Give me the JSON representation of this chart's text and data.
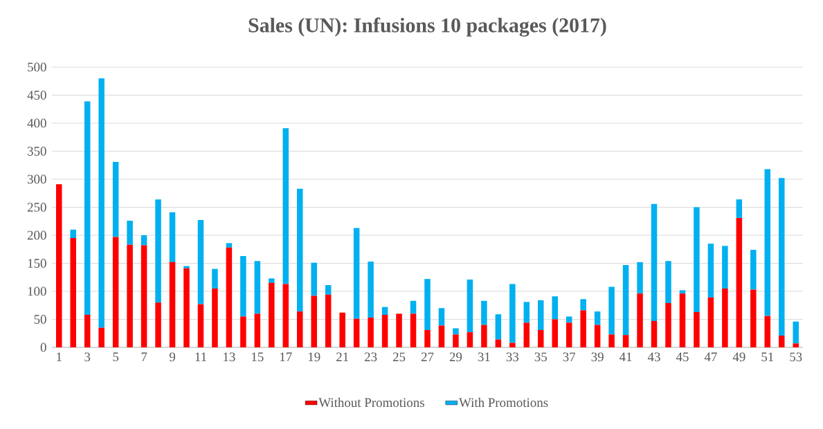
{
  "chart_data": {
    "type": "bar",
    "title": "Sales (UN): Infusions 10 packages (2017)",
    "stacked": true,
    "grid": "y",
    "legend": "bottom",
    "categories": [
      "1",
      null,
      "3",
      null,
      "5",
      null,
      "7",
      null,
      "9",
      null,
      "11",
      null,
      "13",
      null,
      "15",
      null,
      "17",
      null,
      "19",
      null,
      "21",
      null,
      "23",
      null,
      "25",
      null,
      "27",
      null,
      "29",
      null,
      "31",
      null,
      "33",
      null,
      "35",
      null,
      "37",
      null,
      "39",
      null,
      "41",
      null,
      "43",
      null,
      "45",
      null,
      "47",
      null,
      "49",
      null,
      "51",
      null,
      "53"
    ],
    "series": [
      {
        "name": "Without Promotions",
        "color": "#ff0000",
        "values": [
          291,
          195,
          58,
          35,
          197,
          183,
          182,
          80,
          152,
          141,
          77,
          105,
          178,
          55,
          60,
          115,
          113,
          64,
          92,
          94,
          62,
          51,
          53,
          58,
          60,
          60,
          31,
          39,
          23,
          27,
          40,
          14,
          8,
          44,
          31,
          50,
          44,
          66,
          40,
          23,
          22,
          96,
          47,
          79,
          96,
          63,
          89,
          105,
          231,
          103,
          56,
          21,
          7
        ]
      },
      {
        "name": "With Promotions",
        "color": "#00b0f0",
        "values": [
          0,
          15,
          381,
          445,
          134,
          43,
          18,
          184,
          89,
          4,
          150,
          35,
          8,
          108,
          94,
          8,
          278,
          219,
          59,
          17,
          0,
          162,
          100,
          14,
          0,
          23,
          91,
          31,
          11,
          94,
          43,
          45,
          105,
          37,
          53,
          41,
          11,
          20,
          24,
          85,
          125,
          56,
          209,
          75,
          6,
          187,
          96,
          76,
          33,
          71,
          262,
          281,
          39
        ]
      }
    ],
    "ylim": [
      0,
      500
    ],
    "yticks": [
      0,
      50,
      100,
      150,
      200,
      250,
      300,
      350,
      400,
      450,
      500
    ]
  }
}
